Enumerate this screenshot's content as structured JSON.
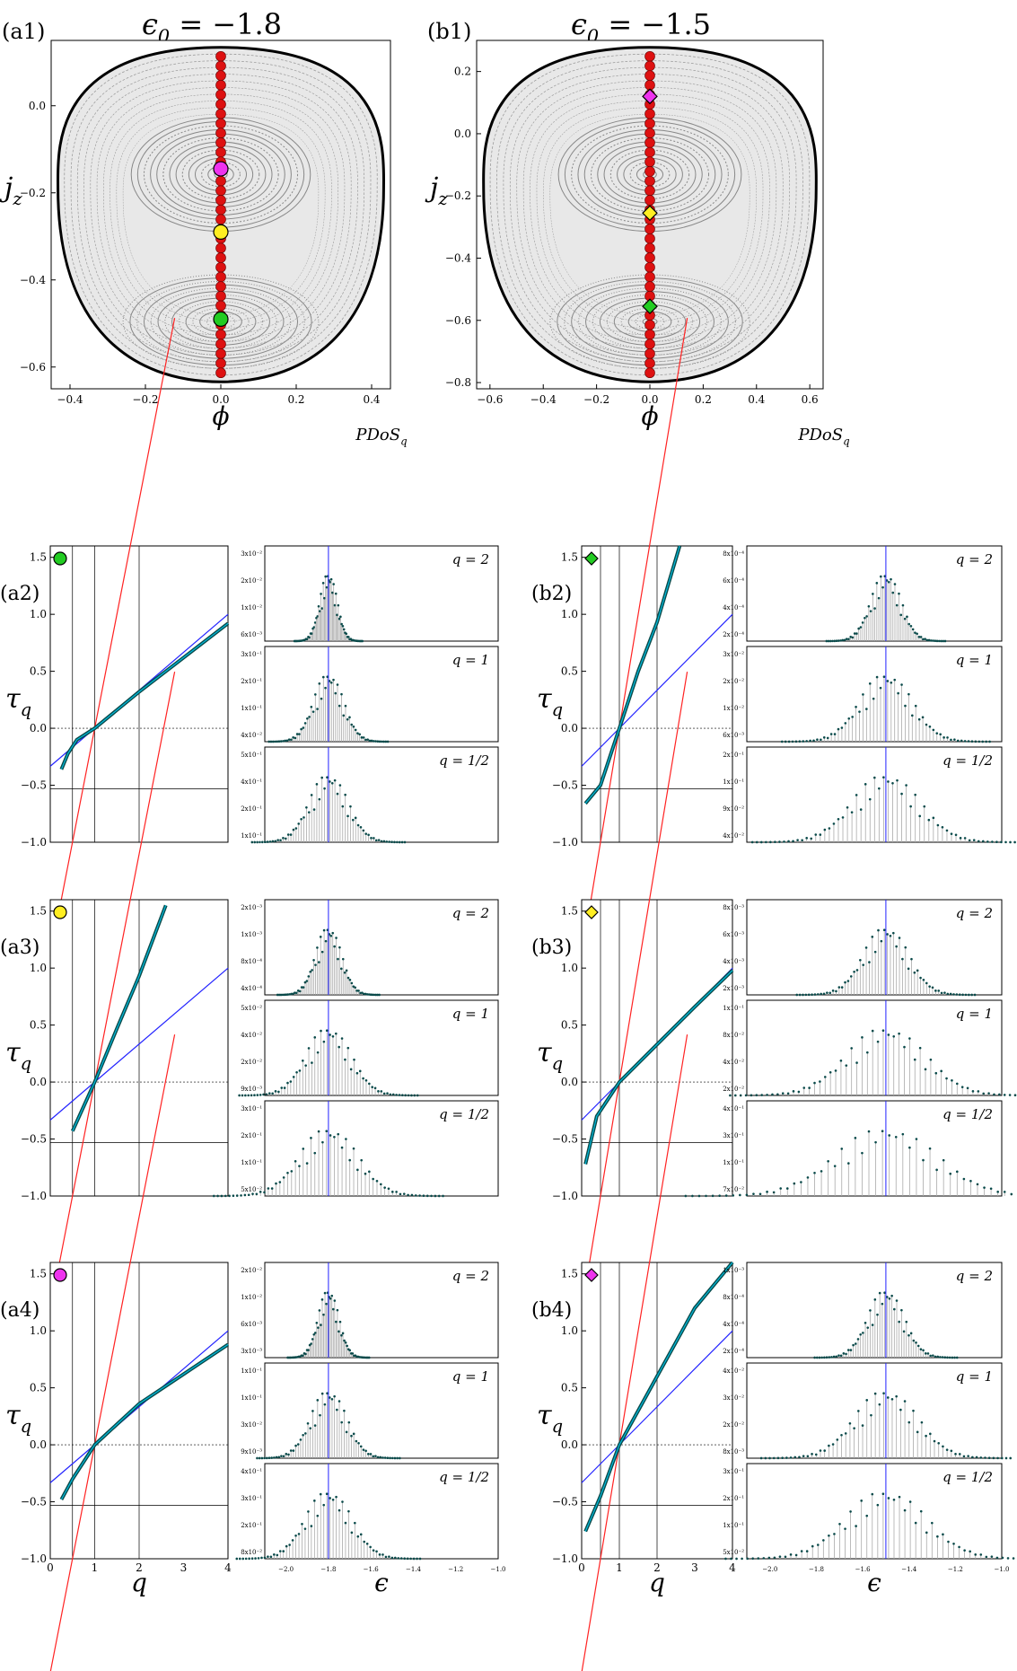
{
  "colors": {
    "dot_red": "#dd1111",
    "green": "#22cc22",
    "yellow": "#ffee22",
    "magenta": "#ee33ee",
    "line_red": "#ff2222",
    "line_blue": "#2222ff",
    "data_dark": "#0a4a4a",
    "cyan": "#00bbdd"
  },
  "xlabel_phi": "ϕ",
  "ylabel_jz": "j",
  "ylabel_jz_sub": "z",
  "top_panels": [
    {
      "label": "(a1)",
      "title": "ϵ",
      "title_sub": "0",
      "title_rest": " = −1.8",
      "xticks": [
        "−0.4",
        "−0.2",
        "0.0",
        "0.2",
        "0.4"
      ],
      "yticks": [
        "0.0",
        "−0.2",
        "−0.4",
        "−0.6"
      ],
      "xlim": [
        -0.45,
        0.45
      ],
      "ylim": [
        -0.65,
        0.15
      ],
      "marker": "circle",
      "points": [
        {
          "name": "green",
          "jz": -0.49
        },
        {
          "name": "yellow",
          "jz": -0.29
        },
        {
          "name": "magenta",
          "jz": -0.145
        }
      ]
    },
    {
      "label": "(b1)",
      "title": "ϵ",
      "title_sub": "0",
      "title_rest": " = −1.5",
      "xticks": [
        "−0.6",
        "−0.4",
        "−0.2",
        "0.0",
        "0.2",
        "0.4",
        "0.6"
      ],
      "yticks": [
        "0.2",
        "0.0",
        "−0.2",
        "−0.4",
        "−0.6",
        "−0.8"
      ],
      "xlim": [
        -0.65,
        0.65
      ],
      "ylim": [
        -0.82,
        0.3
      ],
      "marker": "diamond",
      "points": [
        {
          "name": "green",
          "jz": -0.555
        },
        {
          "name": "yellow",
          "jz": -0.255
        },
        {
          "name": "magenta",
          "jz": 0.12
        }
      ]
    }
  ],
  "pdos_header": "PDoS",
  "pdos_header_sub": "q",
  "tau_label": "τ",
  "tau_label_sub": "q",
  "q_label": "q",
  "eps_label": "ϵ",
  "tau_yticks": [
    "1.5",
    "1.0",
    "0.5",
    "0.0",
    "−0.5",
    "−1.0"
  ],
  "tau_xticks": [
    "0",
    "1",
    "2",
    "3",
    "4"
  ],
  "eps_xticks_a": [
    "−2.0",
    "−1.8",
    "−1.6",
    "−1.4",
    "−1.2",
    "−1.0"
  ],
  "eps_xticks_b": [
    "−2.0",
    "−1.8",
    "−1.6",
    "−1.4",
    "−1.2",
    "−1.0"
  ],
  "chart_data": [
    {
      "panel": "(a2)",
      "type": "line",
      "marker": "green-circle",
      "xlabel": "q",
      "ylabel": "τ_q",
      "xlim": [
        0,
        4
      ],
      "ylim": [
        -1,
        1.6
      ],
      "curve": {
        "q": [
          0.25,
          0.4,
          0.6,
          1,
          2,
          3,
          4
        ],
        "tau": [
          -0.36,
          -0.22,
          -0.1,
          0,
          0.32,
          0.62,
          0.92
        ]
      },
      "pdos": [
        {
          "q": "q = 2",
          "yticks": [
            "3x10⁻²",
            "2x10⁻²",
            "1x10⁻²",
            "6x10⁻³"
          ]
        },
        {
          "q": "q = 1",
          "yticks": [
            "3x10⁻¹",
            "2x10⁻¹",
            "1x10⁻¹",
            "4x10⁻²"
          ]
        },
        {
          "q": "q = 1/2",
          "yticks": [
            "5x10⁻¹",
            "4x10⁻¹",
            "2x10⁻¹",
            "1x10⁻¹"
          ]
        }
      ]
    },
    {
      "panel": "(a3)",
      "type": "line",
      "marker": "yellow-circle",
      "xlabel": "q",
      "ylabel": "τ_q",
      "xlim": [
        0,
        4
      ],
      "ylim": [
        -1,
        1.6
      ],
      "curve": {
        "q": [
          0.5,
          1,
          1.5,
          2,
          2.6
        ],
        "tau": [
          -0.43,
          0,
          0.47,
          0.93,
          1.55
        ]
      },
      "pdos": [
        {
          "q": "q = 2",
          "yticks": [
            "2x10⁻³",
            "1x10⁻³",
            "8x10⁻⁴",
            "4x10⁻⁴"
          ]
        },
        {
          "q": "q = 1",
          "yticks": [
            "5x10⁻²",
            "4x10⁻²",
            "2x10⁻²",
            "9x10⁻³"
          ]
        },
        {
          "q": "q = 1/2",
          "yticks": [
            "3x10⁻¹",
            "2x10⁻¹",
            "1x10⁻¹",
            "5x10⁻²"
          ]
        }
      ]
    },
    {
      "panel": "(a4)",
      "type": "line",
      "marker": "magenta-circle",
      "xlabel": "q",
      "ylabel": "τ_q",
      "xlim": [
        0,
        4
      ],
      "ylim": [
        -1,
        1.6
      ],
      "curve": {
        "q": [
          0.25,
          0.5,
          1,
          2,
          3,
          4
        ],
        "tau": [
          -0.48,
          -0.3,
          0,
          0.36,
          0.62,
          0.88
        ]
      },
      "pdos": [
        {
          "q": "q = 2",
          "yticks": [
            "2x10⁻²",
            "1x10⁻²",
            "6x10⁻³",
            "3x10⁻³"
          ]
        },
        {
          "q": "q = 1",
          "yticks": [
            "1x10⁻¹",
            "1x10⁻¹",
            "3x10⁻²",
            "9x10⁻³"
          ]
        },
        {
          "q": "q = 1/2",
          "yticks": [
            "4x10⁻¹",
            "3x10⁻¹",
            "2x10⁻¹",
            "8x10⁻²"
          ]
        }
      ]
    },
    {
      "panel": "(b2)",
      "type": "line",
      "marker": "green-diamond",
      "xlabel": "q",
      "ylabel": "τ_q",
      "xlim": [
        0,
        4
      ],
      "ylim": [
        -1,
        1.6
      ],
      "curve": {
        "q": [
          0.1,
          0.5,
          1,
          1.5,
          2,
          2.6
        ],
        "tau": [
          -0.66,
          -0.5,
          0,
          0.5,
          0.93,
          1.6
        ]
      },
      "pdos": [
        {
          "q": "q = 2",
          "yticks": [
            "8x10⁻⁴",
            "6x10⁻⁴",
            "4x10⁻⁴",
            "2x10⁻⁴"
          ]
        },
        {
          "q": "q = 1",
          "yticks": [
            "3x10⁻²",
            "2x10⁻²",
            "1x10⁻²",
            "6x10⁻³"
          ]
        },
        {
          "q": "q = 1/2",
          "yticks": [
            "2x10⁻¹",
            "1x10⁻¹",
            "9x10⁻²",
            "4x10⁻²"
          ]
        }
      ]
    },
    {
      "panel": "(b3)",
      "type": "line",
      "marker": "yellow-diamond",
      "xlabel": "q",
      "ylabel": "τ_q",
      "xlim": [
        0,
        4
      ],
      "ylim": [
        -1,
        1.6
      ],
      "curve": {
        "q": [
          0.1,
          0.4,
          1,
          2,
          3,
          4
        ],
        "tau": [
          -0.72,
          -0.3,
          0,
          0.33,
          0.66,
          0.98
        ]
      },
      "pdos": [
        {
          "q": "q = 2",
          "yticks": [
            "8x10⁻³",
            "6x10⁻³",
            "4x10⁻³",
            "2x10⁻³"
          ]
        },
        {
          "q": "q = 1",
          "yticks": [
            "1x10⁻¹",
            "8x10⁻²",
            "4x10⁻²",
            "2x10⁻²"
          ]
        },
        {
          "q": "q = 1/2",
          "yticks": [
            "4x10⁻¹",
            "3x10⁻¹",
            "1x10⁻¹",
            "7x10⁻²"
          ]
        }
      ]
    },
    {
      "panel": "(b4)",
      "type": "line",
      "marker": "magenta-diamond",
      "xlabel": "q",
      "ylabel": "τ_q",
      "xlim": [
        0,
        4
      ],
      "ylim": [
        -1,
        1.6
      ],
      "curve": {
        "q": [
          0.1,
          0.5,
          1,
          2,
          3,
          4
        ],
        "tau": [
          -0.76,
          -0.45,
          0,
          0.6,
          1.2,
          1.6
        ]
      },
      "pdos": [
        {
          "q": "q = 2",
          "yticks": [
            "1x10⁻³",
            "8x10⁻⁴",
            "4x10⁻⁴",
            "2x10⁻⁴"
          ]
        },
        {
          "q": "q = 1",
          "yticks": [
            "4x10⁻²",
            "3x10⁻²",
            "2x10⁻²",
            "8x10⁻³"
          ]
        },
        {
          "q": "q = 1/2",
          "yticks": [
            "3x10⁻¹",
            "2x10⁻¹",
            "1x10⁻¹",
            "5x10⁻²"
          ]
        }
      ]
    }
  ]
}
